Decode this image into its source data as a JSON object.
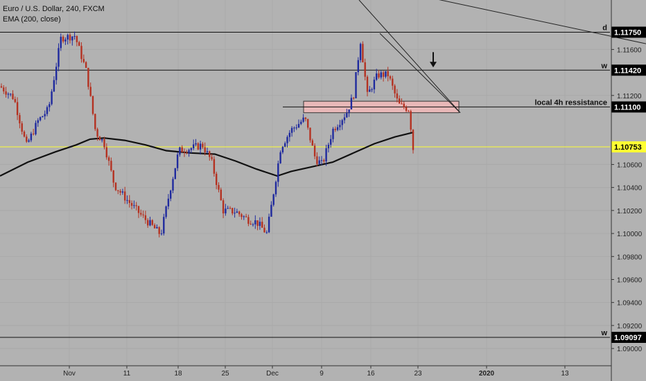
{
  "legend": {
    "symbol": "Euro / U.S. Dollar, 240, FXCM",
    "indicator": "EMA (200, close)"
  },
  "colors": {
    "background": "#b2b2b2",
    "bull": "#1f2a9e",
    "bear": "#b43222",
    "ema": "#111111",
    "current_price_line": "#ffff33",
    "zone_fill": "#e8b8b8"
  },
  "chart_data": {
    "type": "candlestick",
    "x_labels": [
      "Nov",
      "11",
      "18",
      "25",
      "Dec",
      "9",
      "16",
      "23",
      "2020",
      "13"
    ],
    "y_ticks": [
      "1.11600",
      "1.11200",
      "1.10600",
      "1.10400",
      "1.10200",
      "1.10000",
      "1.09800",
      "1.09600",
      "1.09400",
      "1.09200",
      "1.09000"
    ],
    "y_range": [
      1.0885,
      1.1203
    ],
    "horizontal_levels": [
      {
        "label": "d",
        "price_label": "1.11750",
        "value": 1.1175
      },
      {
        "label": "w",
        "price_label": "1.11420",
        "value": 1.1142
      },
      {
        "label": "local 4h ressistance",
        "price_label": "1.11100",
        "value": 1.111
      },
      {
        "label": "",
        "price_label": "1.10753",
        "value": 1.10753,
        "current_price": true
      },
      {
        "label": "w",
        "price_label": "1.09097",
        "value": 1.09097
      }
    ],
    "resistance_zone": {
      "from": 1.1105,
      "to": 1.1115
    },
    "close_path": [
      [
        0,
        1.1128
      ],
      [
        20,
        1.1118
      ],
      [
        38,
        1.1076
      ],
      [
        55,
        1.1098
      ],
      [
        70,
        1.1108
      ],
      [
        88,
        1.117
      ],
      [
        108,
        1.1172
      ],
      [
        125,
        1.114
      ],
      [
        138,
        1.1088
      ],
      [
        150,
        1.1079
      ],
      [
        165,
        1.1042
      ],
      [
        185,
        1.1028
      ],
      [
        205,
        1.1015
      ],
      [
        232,
        1.0999
      ],
      [
        245,
        1.1037
      ],
      [
        258,
        1.1072
      ],
      [
        275,
        1.1074
      ],
      [
        292,
        1.1077
      ],
      [
        305,
        1.1063
      ],
      [
        322,
        1.102
      ],
      [
        340,
        1.1019
      ],
      [
        358,
        1.1012
      ],
      [
        370,
        1.101
      ],
      [
        385,
        1.1
      ],
      [
        398,
        1.1048
      ],
      [
        405,
        1.1075
      ],
      [
        420,
        1.109
      ],
      [
        440,
        1.11
      ],
      [
        455,
        1.1065
      ],
      [
        465,
        1.106
      ],
      [
        480,
        1.109
      ],
      [
        500,
        1.1105
      ],
      [
        510,
        1.112
      ],
      [
        520,
        1.1168
      ],
      [
        530,
        1.112
      ],
      [
        545,
        1.1138
      ],
      [
        560,
        1.1138
      ],
      [
        575,
        1.1112
      ],
      [
        590,
        1.1108
      ],
      [
        597,
        1.1068
      ]
    ],
    "ema_path": [
      [
        0,
        1.105
      ],
      [
        40,
        1.1062
      ],
      [
        80,
        1.1071
      ],
      [
        110,
        1.1077
      ],
      [
        130,
        1.1082
      ],
      [
        150,
        1.1083
      ],
      [
        180,
        1.1081
      ],
      [
        210,
        1.1077
      ],
      [
        240,
        1.1072
      ],
      [
        275,
        1.107
      ],
      [
        310,
        1.1069
      ],
      [
        340,
        1.1063
      ],
      [
        370,
        1.1056
      ],
      [
        400,
        1.105
      ],
      [
        420,
        1.1054
      ],
      [
        450,
        1.1058
      ],
      [
        480,
        1.1062
      ],
      [
        510,
        1.107
      ],
      [
        540,
        1.1078
      ],
      [
        570,
        1.1084
      ],
      [
        597,
        1.1088
      ]
    ],
    "trendlines": [
      {
        "from": [
          518,
          1.1203
        ],
        "to": [
          664,
          1.1105
        ]
      },
      {
        "from": [
          548,
          1.1174
        ],
        "to": [
          664,
          1.1105
        ]
      },
      {
        "from": [
          620,
          1.1205
        ],
        "to": [
          932,
          1.1165
        ]
      }
    ],
    "annotations": [
      {
        "type": "arrow-down",
        "x": 625,
        "value": 1.1142
      }
    ]
  }
}
